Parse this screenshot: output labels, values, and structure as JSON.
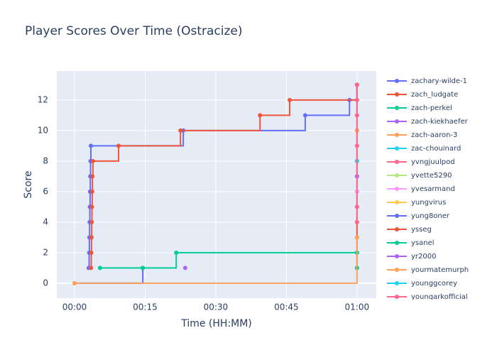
{
  "chart_data": {
    "type": "line",
    "line_shape": "hv",
    "title": "Player Scores Over Time (Ostracize)",
    "x_label": "Time (HH:MM)",
    "y_label": "Score",
    "xlim": [
      -3.77,
      64.1
    ],
    "ylim": [
      -0.98,
      13.9
    ],
    "xticks": [
      {
        "value": 0,
        "label": "00:00"
      },
      {
        "value": 15,
        "label": "00:15"
      },
      {
        "value": 30,
        "label": "00:30"
      },
      {
        "value": 45,
        "label": "00:45"
      },
      {
        "value": 60,
        "label": "01:00"
      }
    ],
    "yticks": [
      0,
      2,
      4,
      6,
      8,
      10,
      12
    ],
    "grid": true,
    "series": [
      {
        "name": "zachary-wilde-1",
        "color": "#636efa",
        "x": [
          0,
          14.5
        ],
        "values": [
          0,
          1
        ]
      },
      {
        "name": "zach_ludgate",
        "color": "#ef553b",
        "x": [
          60,
          60,
          60,
          60,
          60,
          60,
          60,
          60,
          60,
          60,
          60,
          60,
          60
        ],
        "values": [
          1,
          2,
          3,
          4,
          5,
          6,
          7,
          8,
          9,
          10,
          11,
          12,
          13
        ]
      },
      {
        "name": "zach-perkel",
        "color": "#00cc96",
        "x": [
          60
        ],
        "values": [
          1
        ]
      },
      {
        "name": "zach-kiekhaefer",
        "color": "#ab63fa",
        "x": [
          60
        ],
        "values": [
          7
        ]
      },
      {
        "name": "zach-aaron-3",
        "color": "#ffa15a",
        "x": [
          60
        ],
        "values": [
          10
        ]
      },
      {
        "name": "zac-chouinard",
        "color": "#19d3f3",
        "x": [
          60
        ],
        "values": [
          8
        ]
      },
      {
        "name": "yvngjuulpod",
        "color": "#ff6692",
        "x": [
          60
        ],
        "values": [
          11
        ]
      },
      {
        "name": "yvette5290",
        "color": "#b6e880",
        "x": [
          60
        ],
        "values": [
          3
        ]
      },
      {
        "name": "yvesarmand",
        "color": "#ff97ff",
        "x": [
          60
        ],
        "values": [
          6
        ]
      },
      {
        "name": "yungvirus",
        "color": "#fecb52",
        "x": [
          0
        ],
        "values": [
          0
        ]
      },
      {
        "name": "yung8oner",
        "color": "#636efa",
        "x": [
          3.0,
          3.1,
          3.15,
          3.2,
          3.25,
          3.3,
          3.35,
          3.4,
          3.47,
          23.1,
          49.0,
          58.4,
          60
        ],
        "values": [
          1,
          2,
          3,
          4,
          5,
          6,
          7,
          8,
          9,
          10,
          11,
          12,
          13
        ]
      },
      {
        "name": "ysseg",
        "color": "#ef553b",
        "x": [
          3.5,
          3.55,
          3.6,
          3.65,
          3.7,
          3.75,
          3.8,
          3.9,
          9.35,
          22.5,
          39.4,
          45.7,
          60
        ],
        "values": [
          1,
          2,
          3,
          4,
          5,
          6,
          7,
          8,
          9,
          10,
          11,
          12,
          13
        ]
      },
      {
        "name": "ysanel",
        "color": "#00cc96",
        "x": [
          5.4,
          14.5,
          21.6,
          60
        ],
        "values": [
          1,
          1,
          2,
          2
        ]
      },
      {
        "name": "yr2000",
        "color": "#ab63fa",
        "x": [
          23.5
        ],
        "values": [
          1
        ]
      },
      {
        "name": "yourmatemurph",
        "color": "#ffa15a",
        "x": [
          0,
          60
        ],
        "values": [
          0,
          3
        ]
      },
      {
        "name": "younggcorey",
        "color": "#19d3f3",
        "x": [
          60
        ],
        "values": [
          8
        ]
      },
      {
        "name": "youngarkofficial",
        "color": "#ff6692",
        "x": [
          60,
          60,
          60,
          60,
          60
        ],
        "values": [
          4,
          5,
          9,
          12,
          13
        ]
      }
    ]
  }
}
